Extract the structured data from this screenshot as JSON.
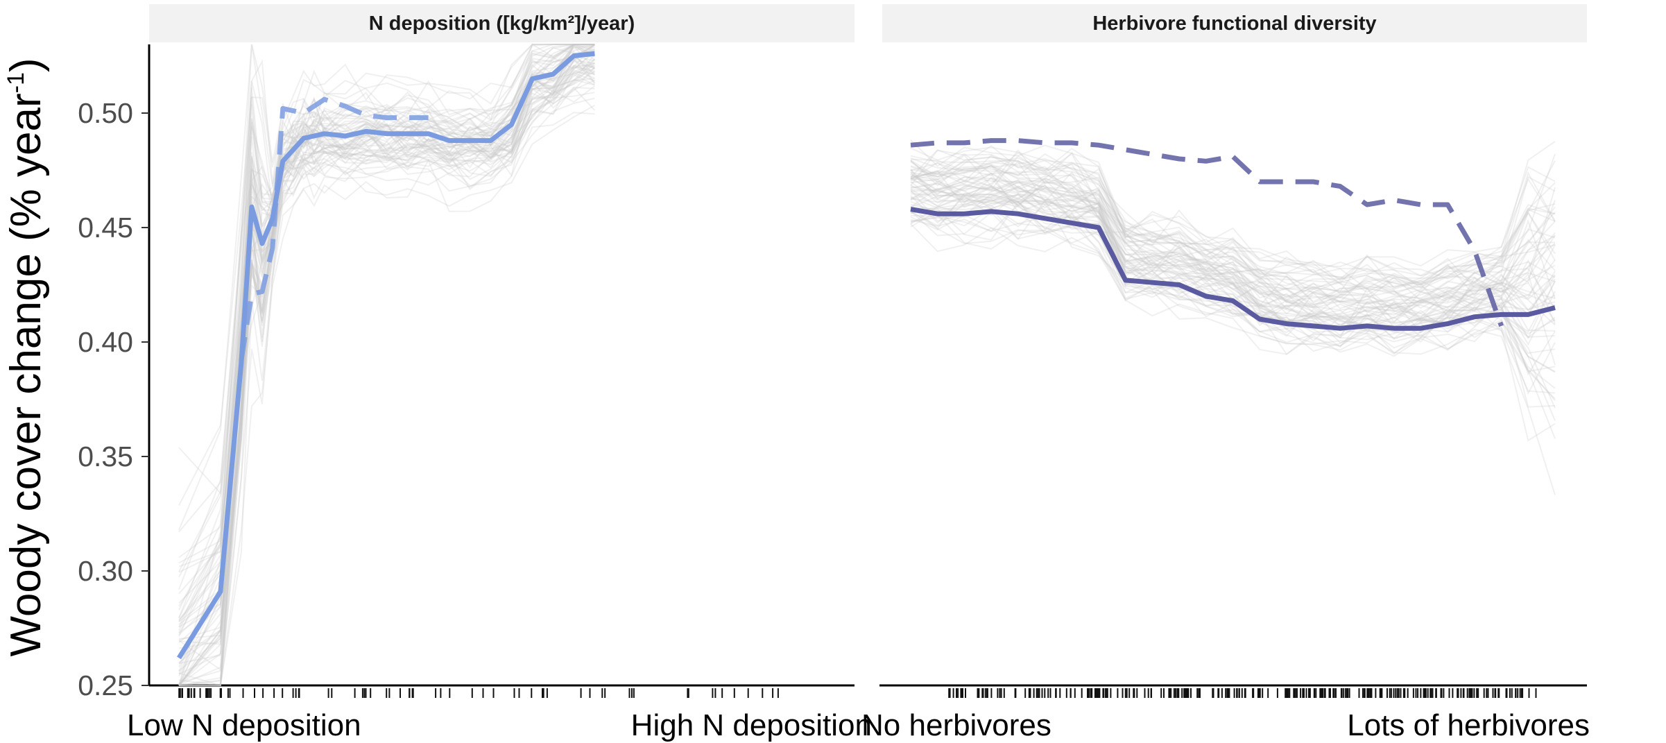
{
  "chart_data": {
    "type": "line",
    "ylabel": "Woody cover change (% year",
    "ylabel_sup": "-1",
    "ylabel_close": ")",
    "ylim": [
      0.25,
      0.53
    ],
    "yticks": [
      0.25,
      0.3,
      0.35,
      0.4,
      0.45,
      0.5
    ],
    "ytick_labels": [
      "0.25",
      "0.30",
      "0.35",
      "0.40",
      "0.45",
      "0.50"
    ],
    "grid": false,
    "legend": "none",
    "background_lines": "many faint grey lines (bootstrap replicates) behind each main curve",
    "panels": [
      {
        "strip": "N deposition ([kg/km²]/year)",
        "x_low_label": "Low N deposition",
        "x_high_label": "High N deposition",
        "color": "#7b9be0",
        "x": [
          0,
          4,
          6,
          7,
          8,
          9,
          10,
          11,
          12,
          13,
          14,
          16,
          18,
          20,
          22,
          24,
          26,
          28,
          30,
          32,
          34,
          36,
          38,
          40,
          42,
          44,
          46,
          48,
          50,
          52,
          54,
          56,
          58,
          60,
          62
        ],
        "series": [
          {
            "style": "solid",
            "values": [
              0.262,
              0.291,
              0.391,
              0.459,
              0.443,
              0.454,
              0.479,
              0.484,
              0.489,
              0.49,
              0.491,
              0.49,
              0.492,
              0.491,
              0.491,
              0.491,
              0.488,
              0.488,
              0.488,
              0.495,
              0.515,
              0.517,
              0.525,
              0.526,
              null,
              null,
              null,
              null,
              null,
              null,
              null,
              null,
              null,
              null,
              null
            ]
          },
          {
            "style": "dashed",
            "values": [
              null,
              null,
              0.392,
              0.421,
              0.422,
              0.441,
              0.502,
              0.501,
              0.5,
              0.503,
              0.506,
              0.503,
              0.499,
              0.498,
              0.498,
              0.498,
              null,
              null,
              null,
              null,
              null,
              null,
              null,
              null,
              null,
              null,
              null,
              null,
              null,
              null,
              null,
              null,
              null,
              null,
              null
            ]
          }
        ]
      },
      {
        "strip": "Herbivore functional diversity",
        "x_low_label": "No herbivores",
        "x_high_label": "Lots of herbivores",
        "color": "#5a5aa0",
        "series": [
          {
            "style": "solid",
            "values": [
              0.458,
              0.456,
              0.456,
              0.457,
              0.456,
              0.454,
              0.452,
              0.45,
              0.427,
              0.426,
              0.425,
              0.42,
              0.418,
              0.41,
              0.408,
              0.407,
              0.406,
              0.407,
              0.406,
              0.406,
              0.408,
              0.411,
              0.412,
              0.412,
              0.415
            ]
          },
          {
            "style": "dashed",
            "values": [
              0.486,
              0.487,
              0.487,
              0.488,
              0.488,
              0.487,
              0.487,
              0.486,
              0.484,
              0.482,
              0.48,
              0.479,
              0.481,
              0.47,
              0.47,
              0.47,
              0.468,
              0.46,
              0.462,
              0.46,
              0.46,
              0.44,
              0.407
            ]
          }
        ]
      }
    ]
  }
}
